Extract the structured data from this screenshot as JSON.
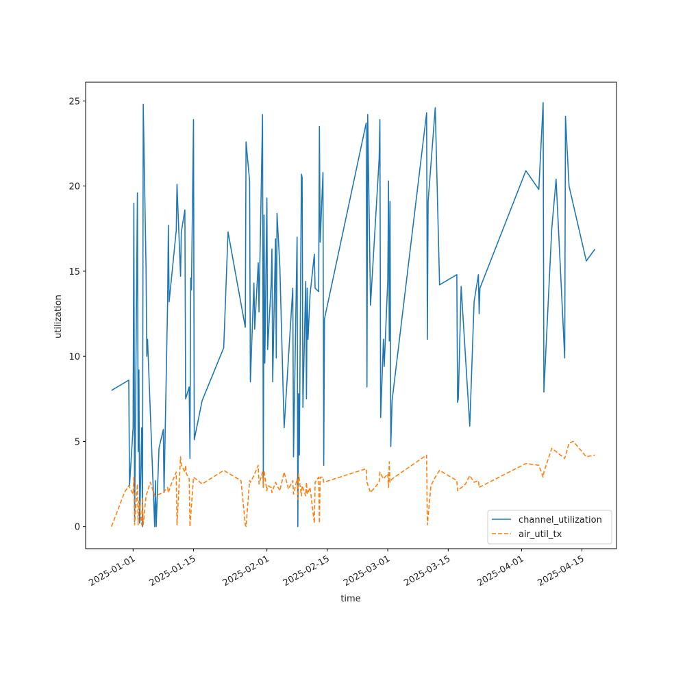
{
  "chart_data": {
    "type": "line",
    "title": "",
    "xlabel": "time",
    "ylabel": "utilization",
    "x_ticks": [
      "2025-01-01",
      "2025-01-15",
      "2025-02-01",
      "2025-02-15",
      "2025-03-01",
      "2025-03-15",
      "2025-04-01",
      "2025-04-15"
    ],
    "y_ticks": [
      0,
      5,
      10,
      15,
      20,
      25
    ],
    "xlim": [
      "2024-12-21",
      "2025-04-23"
    ],
    "ylim": [
      -1.3,
      26.1
    ],
    "grid": false,
    "legend_position": "lower right",
    "series": [
      {
        "name": "channel_utilization",
        "color": "#1f77b4",
        "style": "solid",
        "points": [
          [
            "2024-12-27",
            8.0
          ],
          [
            "2024-12-31",
            8.6
          ],
          [
            "2024-12-31",
            2.4
          ],
          [
            "2025-01-01",
            5.8
          ],
          [
            "2025-01-01",
            19.0
          ],
          [
            "2025-01-01",
            0.3
          ],
          [
            "2025-01-02",
            19.6
          ],
          [
            "2025-01-02",
            4.4
          ],
          [
            "2025-01-02",
            9.2
          ],
          [
            "2025-01-02",
            0.2
          ],
          [
            "2025-01-03",
            5.8
          ],
          [
            "2025-01-03",
            0.0
          ],
          [
            "2025-01-03",
            24.8
          ],
          [
            "2025-01-04",
            15.2
          ],
          [
            "2025-01-04",
            10.0
          ],
          [
            "2025-01-04",
            11.0
          ],
          [
            "2025-01-06",
            0.0
          ],
          [
            "2025-01-06",
            2.7
          ],
          [
            "2025-01-06",
            0.0
          ],
          [
            "2025-01-07",
            4.6
          ],
          [
            "2025-01-08",
            5.7
          ],
          [
            "2025-01-08",
            2.0
          ],
          [
            "2025-01-09",
            13.2
          ],
          [
            "2025-01-09",
            17.7
          ],
          [
            "2025-01-09",
            13.2
          ],
          [
            "2025-01-11",
            17.4
          ],
          [
            "2025-01-11",
            20.1
          ],
          [
            "2025-01-12",
            14.7
          ],
          [
            "2025-01-12",
            17.3
          ],
          [
            "2025-01-13",
            18.6
          ],
          [
            "2025-01-13",
            7.5
          ],
          [
            "2025-01-14",
            8.2
          ],
          [
            "2025-01-14",
            4.0
          ],
          [
            "2025-01-14",
            14.6
          ],
          [
            "2025-01-14",
            13.9
          ],
          [
            "2025-01-15",
            23.9
          ],
          [
            "2025-01-15",
            5.1
          ],
          [
            "2025-01-17",
            7.4
          ],
          [
            "2025-01-22",
            10.5
          ],
          [
            "2025-01-23",
            17.3
          ],
          [
            "2025-01-27",
            11.7
          ],
          [
            "2025-01-27",
            22.6
          ],
          [
            "2025-01-28",
            20.3
          ],
          [
            "2025-01-28",
            8.5
          ],
          [
            "2025-01-29",
            14.3
          ],
          [
            "2025-01-29",
            11.6
          ],
          [
            "2025-01-30",
            15.5
          ],
          [
            "2025-01-30",
            12.6
          ],
          [
            "2025-01-31",
            24.2
          ],
          [
            "2025-01-31",
            2.3
          ],
          [
            "2025-01-31",
            18.3
          ],
          [
            "2025-01-31",
            9.6
          ],
          [
            "2025-02-01",
            19.3
          ],
          [
            "2025-02-01",
            10.4
          ],
          [
            "2025-02-02",
            14.3
          ],
          [
            "2025-02-02",
            16.3
          ],
          [
            "2025-02-02",
            8.5
          ],
          [
            "2025-02-03",
            16.9
          ],
          [
            "2025-02-03",
            9.9
          ],
          [
            "2025-02-03",
            18.4
          ],
          [
            "2025-02-04",
            15.3
          ],
          [
            "2025-02-05",
            5.8
          ],
          [
            "2025-02-06",
            9.9
          ],
          [
            "2025-02-07",
            14.0
          ],
          [
            "2025-02-07",
            4.1
          ],
          [
            "2025-02-08",
            17.0
          ],
          [
            "2025-02-08",
            0.0
          ],
          [
            "2025-02-08",
            7.8
          ],
          [
            "2025-02-08",
            4.2
          ],
          [
            "2025-02-09",
            20.7
          ],
          [
            "2025-02-09",
            20.5
          ],
          [
            "2025-02-09",
            7.0
          ],
          [
            "2025-02-10",
            14.4
          ],
          [
            "2025-02-10",
            7.5
          ],
          [
            "2025-02-10",
            14.0
          ],
          [
            "2025-02-10",
            11.0
          ],
          [
            "2025-02-11",
            13.6
          ],
          [
            "2025-02-12",
            16.0
          ],
          [
            "2025-02-12",
            14.0
          ],
          [
            "2025-02-13",
            13.8
          ],
          [
            "2025-02-13",
            23.5
          ],
          [
            "2025-02-13",
            16.7
          ],
          [
            "2025-02-14",
            20.8
          ],
          [
            "2025-02-14",
            3.6
          ],
          [
            "2025-02-14",
            12.2
          ],
          [
            "2025-02-24",
            23.7
          ],
          [
            "2025-02-24",
            8.2
          ],
          [
            "2025-02-24",
            24.2
          ],
          [
            "2025-02-25",
            13.0
          ],
          [
            "2025-02-27",
            21.6
          ],
          [
            "2025-02-27",
            23.9
          ],
          [
            "2025-02-27",
            6.4
          ],
          [
            "2025-02-28",
            11.0
          ],
          [
            "2025-02-28",
            9.4
          ],
          [
            "2025-03-01",
            14.5
          ],
          [
            "2025-03-01",
            20.3
          ],
          [
            "2025-03-01",
            10.9
          ],
          [
            "2025-03-01",
            19.1
          ],
          [
            "2025-03-01",
            4.7
          ],
          [
            "2025-03-02",
            7.4
          ],
          [
            "2025-03-10",
            24.3
          ],
          [
            "2025-03-10",
            11.0
          ],
          [
            "2025-03-10",
            19.1
          ],
          [
            "2025-03-12",
            24.6
          ],
          [
            "2025-03-13",
            14.2
          ],
          [
            "2025-03-17",
            14.8
          ],
          [
            "2025-03-17",
            7.3
          ],
          [
            "2025-03-17",
            7.5
          ],
          [
            "2025-03-18",
            14.1
          ],
          [
            "2025-03-20",
            5.9
          ],
          [
            "2025-03-21",
            13.2
          ],
          [
            "2025-03-22",
            14.8
          ],
          [
            "2025-03-22",
            12.5
          ],
          [
            "2025-03-22",
            14.0
          ],
          [
            "2025-04-02",
            20.9
          ],
          [
            "2025-04-05",
            19.8
          ],
          [
            "2025-04-06",
            24.9
          ],
          [
            "2025-04-06",
            7.9
          ],
          [
            "2025-04-08",
            17.5
          ],
          [
            "2025-04-09",
            20.4
          ],
          [
            "2025-04-11",
            9.9
          ],
          [
            "2025-04-11",
            24.1
          ],
          [
            "2025-04-12",
            20.0
          ],
          [
            "2025-04-16",
            15.6
          ],
          [
            "2025-04-18",
            16.3
          ]
        ]
      },
      {
        "name": "air_util_tx",
        "color": "#ff7f0e",
        "style": "dashed",
        "points": [
          [
            "2024-12-27",
            0.0
          ],
          [
            "2024-12-30",
            2.0
          ],
          [
            "2024-12-31",
            2.4
          ],
          [
            "2025-01-01",
            1.9
          ],
          [
            "2025-01-01",
            2.9
          ],
          [
            "2025-01-01",
            0.1
          ],
          [
            "2025-01-02",
            2.5
          ],
          [
            "2025-01-02",
            0.1
          ],
          [
            "2025-01-02",
            1.5
          ],
          [
            "2025-01-03",
            0.1
          ],
          [
            "2025-01-03",
            1.7
          ],
          [
            "2025-01-03",
            0.1
          ],
          [
            "2025-01-04",
            1.8
          ],
          [
            "2025-01-05",
            2.6
          ],
          [
            "2025-01-06",
            1.8
          ],
          [
            "2025-01-08",
            2.0
          ],
          [
            "2025-01-09",
            2.3
          ],
          [
            "2025-01-09",
            2.0
          ],
          [
            "2025-01-10",
            2.6
          ],
          [
            "2025-01-11",
            3.2
          ],
          [
            "2025-01-11",
            0.1
          ],
          [
            "2025-01-12",
            4.1
          ],
          [
            "2025-01-12",
            3.6
          ],
          [
            "2025-01-13",
            3.2
          ],
          [
            "2025-01-13",
            3.6
          ],
          [
            "2025-01-13",
            3.1
          ],
          [
            "2025-01-14",
            2.8
          ],
          [
            "2025-01-14",
            0.0
          ],
          [
            "2025-01-15",
            2.9
          ],
          [
            "2025-01-17",
            2.5
          ],
          [
            "2025-01-22",
            3.3
          ],
          [
            "2025-01-26",
            2.7
          ],
          [
            "2025-01-27",
            0.1
          ],
          [
            "2025-01-27",
            0.0
          ],
          [
            "2025-01-28",
            2.7
          ],
          [
            "2025-01-28",
            2.6
          ],
          [
            "2025-01-29",
            3.0
          ],
          [
            "2025-01-30",
            3.6
          ],
          [
            "2025-01-30",
            2.5
          ],
          [
            "2025-01-31",
            3.2
          ],
          [
            "2025-01-31",
            2.3
          ],
          [
            "2025-01-31",
            3.3
          ],
          [
            "2025-02-01",
            2.1
          ],
          [
            "2025-02-01",
            2.4
          ],
          [
            "2025-02-02",
            2.3
          ],
          [
            "2025-02-02",
            2.0
          ],
          [
            "2025-02-03",
            2.6
          ],
          [
            "2025-02-04",
            2.1
          ],
          [
            "2025-02-05",
            3.2
          ],
          [
            "2025-02-06",
            2.2
          ],
          [
            "2025-02-07",
            2.7
          ],
          [
            "2025-02-07",
            1.9
          ],
          [
            "2025-02-08",
            2.8
          ],
          [
            "2025-02-08",
            1.6
          ],
          [
            "2025-02-08",
            3.1
          ],
          [
            "2025-02-09",
            1.8
          ],
          [
            "2025-02-09",
            2.4
          ],
          [
            "2025-02-10",
            1.8
          ],
          [
            "2025-02-10",
            2.6
          ],
          [
            "2025-02-10",
            1.9
          ],
          [
            "2025-02-11",
            2.3
          ],
          [
            "2025-02-12",
            0.2
          ],
          [
            "2025-02-12",
            2.6
          ],
          [
            "2025-02-13",
            2.9
          ],
          [
            "2025-02-13",
            0.2
          ],
          [
            "2025-02-13",
            2.9
          ],
          [
            "2025-02-14",
            2.9
          ],
          [
            "2025-02-14",
            2.6
          ],
          [
            "2025-02-24",
            3.4
          ],
          [
            "2025-02-24",
            2.6
          ],
          [
            "2025-02-25",
            2.0
          ],
          [
            "2025-02-27",
            2.6
          ],
          [
            "2025-02-27",
            3.2
          ],
          [
            "2025-02-28",
            2.8
          ],
          [
            "2025-03-01",
            3.1
          ],
          [
            "2025-03-01",
            2.3
          ],
          [
            "2025-03-01",
            3.8
          ],
          [
            "2025-03-01",
            2.6
          ],
          [
            "2025-03-02",
            2.8
          ],
          [
            "2025-03-10",
            4.2
          ],
          [
            "2025-03-10",
            0.1
          ],
          [
            "2025-03-11",
            2.4
          ],
          [
            "2025-03-12",
            2.9
          ],
          [
            "2025-03-13",
            3.3
          ],
          [
            "2025-03-17",
            2.7
          ],
          [
            "2025-03-17",
            2.1
          ],
          [
            "2025-03-19",
            2.5
          ],
          [
            "2025-03-20",
            3.0
          ],
          [
            "2025-03-21",
            2.6
          ],
          [
            "2025-03-22",
            2.7
          ],
          [
            "2025-03-22",
            2.3
          ],
          [
            "2025-04-02",
            3.7
          ],
          [
            "2025-04-05",
            3.6
          ],
          [
            "2025-04-06",
            2.9
          ],
          [
            "2025-04-06",
            3.2
          ],
          [
            "2025-04-08",
            4.6
          ],
          [
            "2025-04-09",
            4.4
          ],
          [
            "2025-04-11",
            4.0
          ],
          [
            "2025-04-12",
            4.9
          ],
          [
            "2025-04-13",
            5.0
          ],
          [
            "2025-04-16",
            4.1
          ],
          [
            "2025-04-18",
            4.2
          ]
        ]
      }
    ]
  }
}
